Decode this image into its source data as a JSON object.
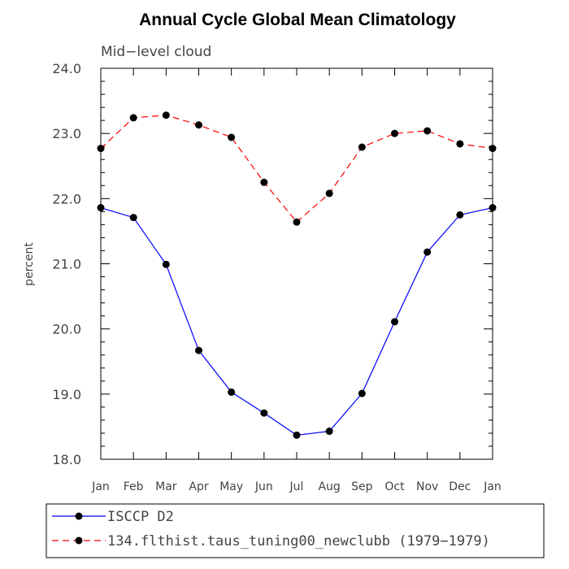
{
  "chart_data": {
    "type": "line",
    "title": "Annual Cycle Global Mean Climatology",
    "subtitle": "Mid−level cloud",
    "xlabel": "",
    "ylabel": "percent",
    "categories": [
      "Jan",
      "Feb",
      "Mar",
      "Apr",
      "May",
      "Jun",
      "Jul",
      "Aug",
      "Sep",
      "Oct",
      "Nov",
      "Dec",
      "Jan"
    ],
    "ylim": [
      18.0,
      24.0
    ],
    "yticks": [
      "18.0",
      "19.0",
      "20.0",
      "21.0",
      "22.0",
      "23.0",
      "24.0"
    ],
    "grid": false,
    "legend_position": "bottom",
    "series": [
      {
        "name": "ISCCP D2",
        "color": "#0000ff",
        "dash": "solid",
        "values": [
          21.86,
          21.71,
          20.99,
          19.67,
          19.03,
          18.71,
          18.37,
          18.43,
          19.01,
          20.11,
          21.18,
          21.75,
          21.86
        ]
      },
      {
        "name": "134.flthist.taus_tuning00_newclubb (1979−1979)",
        "color": "#ff0000",
        "dash": "dashed",
        "values": [
          22.77,
          23.24,
          23.28,
          23.13,
          22.94,
          22.25,
          21.64,
          22.08,
          22.79,
          23.0,
          23.04,
          22.84,
          22.77
        ]
      }
    ]
  }
}
